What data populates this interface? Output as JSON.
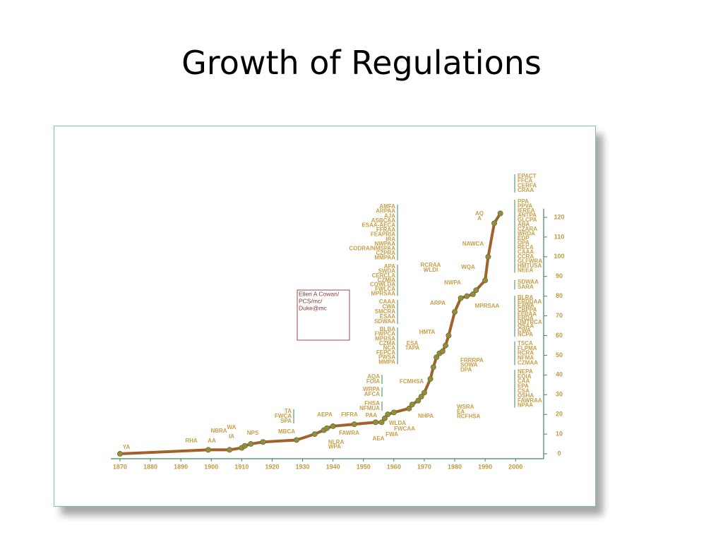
{
  "chart_data": {
    "type": "line",
    "title": "Growth of Regulations",
    "x": [
      1870,
      1899,
      1906,
      1910,
      1911,
      1913,
      1917,
      1928,
      1934,
      1937,
      1938,
      1940,
      1947,
      1954,
      1956,
      1957,
      1958,
      1960,
      1965,
      1966,
      1968,
      1969,
      1970,
      1972,
      1973,
      1974,
      1975,
      1976,
      1977,
      1978,
      1980,
      1982,
      1984,
      1986,
      1987,
      1990,
      1991,
      1993,
      1995
    ],
    "values": [
      0,
      2,
      2,
      3,
      4,
      5,
      6,
      7,
      10,
      12,
      13,
      14,
      15,
      16,
      16,
      18,
      20,
      21,
      23,
      25,
      27,
      29,
      31,
      38,
      44,
      49,
      51,
      52,
      55,
      60,
      72,
      79,
      80,
      81,
      83,
      88,
      100,
      117,
      122
    ],
    "color": "#a0622a",
    "xlim": [
      1867,
      2009
    ],
    "ylim": [
      -2,
      123
    ],
    "xticks": [
      1870,
      1880,
      1890,
      1900,
      1910,
      1920,
      1930,
      1940,
      1950,
      1960,
      1970,
      1980,
      1990,
      2000
    ],
    "yticks": [
      0,
      10,
      20,
      30,
      40,
      50,
      60,
      70,
      80,
      90,
      100,
      110,
      120
    ],
    "annotations": [
      [
        "AMFA",
        "ARPAA",
        "AJA",
        "ASBCAA",
        "ESAA-AECA",
        "FFRAA",
        "FEAPRIA",
        "IRA",
        "NWPAA",
        "CODRA/NMSPAA",
        "CZPRA",
        "MMPAA"
      ],
      [
        "APA",
        "SWDA",
        "CERCLA",
        "CZMIA",
        "COWLDA",
        "FWLCA",
        "MPRSAA"
      ],
      [
        "CAAA",
        "CWA",
        "SMCRA",
        "ESAA",
        "SDWAA"
      ],
      [
        "BLBA",
        "FWPCA",
        "MPRSA",
        "CZMA",
        "NCA",
        "FEPCA",
        "PWSA",
        "MMPA"
      ],
      [
        "AQA",
        "FOIA"
      ],
      [
        "WRPA",
        "AFCA"
      ],
      [
        "FHSA",
        "NFMUA"
      ],
      [
        "PAA"
      ],
      [
        "TA",
        "FWCA",
        "SPA"
      ],
      [
        "AEPA"
      ],
      [
        "FIFRA"
      ],
      [
        "NBRA"
      ],
      [
        "WA"
      ],
      [
        "IA"
      ],
      [
        "NPS"
      ],
      [
        "MBCA"
      ],
      [
        "AA"
      ],
      [
        "RHA"
      ],
      [
        "YA"
      ],
      [
        "NLRA",
        "WPA"
      ],
      [
        "FAWRA"
      ],
      [
        "AEA"
      ],
      [
        "FWA"
      ],
      [
        "FWCAA"
      ],
      [
        "WLDA"
      ],
      [
        "NHPA"
      ],
      [
        "WSRA",
        "EA",
        "RCFHSA"
      ],
      [
        "FCMHSA"
      ],
      [
        "ESA",
        "TAPA"
      ],
      [
        "HMTA"
      ],
      [
        "FRRRPA",
        "SOWA",
        "DPA"
      ],
      [
        "ARPA"
      ],
      [
        "MPRSAA"
      ],
      [
        "NWPA"
      ],
      [
        "RCRAA",
        "WLDI"
      ],
      [
        "WQA"
      ],
      [
        "NAWCA"
      ],
      [
        "AQ",
        "A"
      ],
      [
        "EPACT",
        "FFCA",
        "CERFA",
        "CRAA"
      ],
      [
        "PPA",
        "PPVA",
        "IEREA",
        "ANTPA",
        "GLCPA",
        "ABA",
        "CZARA",
        "WRDA",
        "EDP",
        "OPA",
        "RECA",
        "CAAA",
        "CCRA",
        "GLFWRA",
        "HMTUSA",
        "NEEA"
      ],
      [
        "SDWAA",
        "SARA"
      ],
      [
        "BLRA",
        "ERDDAA",
        "EAWA",
        "CBPPA",
        "FFRAA",
        "ERDA",
        "UMTRCA",
        "QSAA",
        "CWA",
        "NCPA"
      ],
      [
        "TSCA",
        "FLPMA",
        "RCRA",
        "NFMA",
        "CZMAA"
      ],
      [
        "NEPA",
        "EQIA",
        "CAA",
        "EPA",
        "CSA",
        "OSHA",
        "FAWRAA",
        "NPAA"
      ]
    ],
    "watermark": [
      "Ellen A Cowan/",
      "PCS/mc/",
      "Duke@mc"
    ]
  }
}
